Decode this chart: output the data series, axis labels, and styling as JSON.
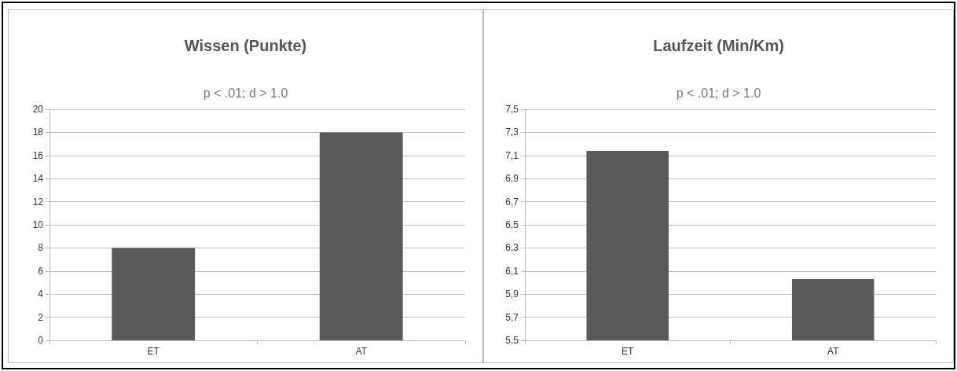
{
  "chart_data": [
    {
      "type": "bar",
      "title": "Wissen (Punkte)",
      "annotations": [
        "p < .01; d > 1.0"
      ],
      "categories": [
        "ET",
        "AT"
      ],
      "values": [
        8,
        18
      ],
      "color": "#5a5a5a",
      "ylim": [
        0,
        20
      ],
      "yticks": [
        0,
        2,
        4,
        6,
        8,
        10,
        12,
        14,
        16,
        18,
        20
      ],
      "grid": "y"
    },
    {
      "type": "bar",
      "title": "Laufzeit (Min/Km)",
      "annotations": [
        "p < .01; d > 1.0"
      ],
      "categories": [
        "ET",
        "AT"
      ],
      "values": [
        7.14,
        6.03
      ],
      "color": "#5a5a5a",
      "ylim": [
        5.5,
        7.5
      ],
      "yticks": [
        {
          "value": 5.5,
          "label": "5,5"
        },
        {
          "value": 5.7,
          "label": "5,7"
        },
        {
          "value": 5.9,
          "label": "5,9"
        },
        {
          "value": 6.1,
          "label": "6,1"
        },
        {
          "value": 6.3,
          "label": "6,3"
        },
        {
          "value": 6.5,
          "label": "6,5"
        },
        {
          "value": 6.7,
          "label": "6,7"
        },
        {
          "value": 6.9,
          "label": "6,9"
        },
        {
          "value": 7.1,
          "label": "7,1"
        },
        {
          "value": 7.3,
          "label": "7,3"
        },
        {
          "value": 7.5,
          "label": "7,5"
        }
      ],
      "grid": "y"
    }
  ]
}
